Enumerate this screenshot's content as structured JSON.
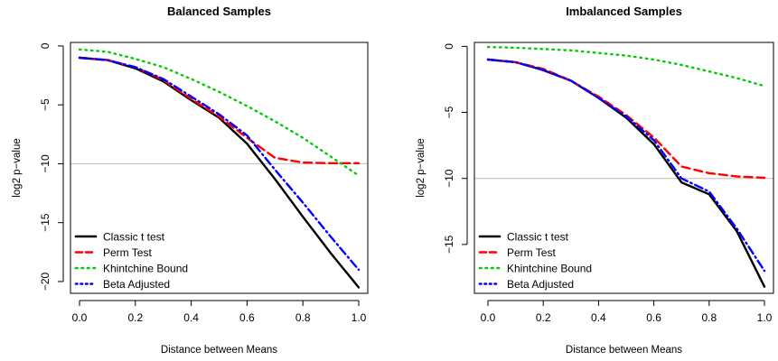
{
  "chart_data": [
    {
      "type": "line",
      "title": "Balanced Samples",
      "xlabel": "Distance between Means",
      "ylabel": "log2 p−value",
      "xlim": [
        0,
        1
      ],
      "ylim": [
        -21,
        0.3
      ],
      "xticks": [
        0.0,
        0.2,
        0.4,
        0.6,
        0.8,
        1.0
      ],
      "xtick_labels": [
        "0.0",
        "0.2",
        "0.4",
        "0.6",
        "0.8",
        "1.0"
      ],
      "yticks": [
        0,
        -5,
        -10,
        -15,
        -20
      ],
      "ytick_labels": [
        "0",
        "−5",
        "−10",
        "−15",
        "−20"
      ],
      "hline": -10,
      "legend_position": "bottom-left",
      "series": [
        {
          "name": "Classic t test",
          "color": "#000000",
          "dash": "solid",
          "x": [
            0,
            0.1,
            0.2,
            0.3,
            0.4,
            0.5,
            0.6,
            0.7,
            0.8,
            0.9,
            1.0
          ],
          "y": [
            -1.0,
            -1.2,
            -1.9,
            -3.0,
            -4.6,
            -6.1,
            -8.3,
            -11.3,
            -14.5,
            -17.6,
            -20.5
          ]
        },
        {
          "name": "Perm Test",
          "color": "#ff0000",
          "dash": "dashed",
          "x": [
            0,
            0.1,
            0.2,
            0.3,
            0.4,
            0.5,
            0.6,
            0.7,
            0.8,
            0.9,
            1.0
          ],
          "y": [
            -1.0,
            -1.2,
            -1.8,
            -2.9,
            -4.5,
            -6.0,
            -7.8,
            -9.5,
            -9.9,
            -9.95,
            -9.95
          ]
        },
        {
          "name": "Khintchine Bound",
          "color": "#00cc00",
          "dash": "dotted",
          "x": [
            0,
            0.1,
            0.2,
            0.3,
            0.4,
            0.5,
            0.6,
            0.7,
            0.8,
            0.9,
            1.0
          ],
          "y": [
            -0.3,
            -0.5,
            -1.1,
            -1.8,
            -2.8,
            -3.9,
            -5.1,
            -6.4,
            -7.8,
            -9.4,
            -11.0
          ]
        },
        {
          "name": "Beta Adjusted",
          "color": "#0000ff",
          "dash": "dotdash",
          "x": [
            0,
            0.1,
            0.2,
            0.3,
            0.4,
            0.5,
            0.6,
            0.7,
            0.8,
            0.9,
            1.0
          ],
          "y": [
            -1.0,
            -1.2,
            -1.8,
            -2.8,
            -4.3,
            -5.8,
            -7.6,
            -10.5,
            -13.3,
            -16.2,
            -19.0
          ]
        }
      ]
    },
    {
      "type": "line",
      "title": "Imbalanced Samples",
      "xlabel": "Distance between Means",
      "ylabel": "log2 p−value",
      "xlim": [
        0,
        1
      ],
      "ylim": [
        -18.7,
        0.3
      ],
      "xticks": [
        0.0,
        0.2,
        0.4,
        0.6,
        0.8,
        1.0
      ],
      "xtick_labels": [
        "0.0",
        "0.2",
        "0.4",
        "0.6",
        "0.8",
        "1.0"
      ],
      "yticks": [
        0,
        -5,
        -10,
        -15
      ],
      "ytick_labels": [
        "0",
        "−5",
        "−10",
        "−15"
      ],
      "hline": -10,
      "legend_position": "bottom-left",
      "series": [
        {
          "name": "Classic t test",
          "color": "#000000",
          "dash": "solid",
          "x": [
            0,
            0.1,
            0.2,
            0.3,
            0.4,
            0.5,
            0.6,
            0.7,
            0.8,
            0.9,
            1.0
          ],
          "y": [
            -1.0,
            -1.2,
            -1.8,
            -2.6,
            -3.9,
            -5.4,
            -7.4,
            -10.3,
            -11.2,
            -14.0,
            -18.2
          ]
        },
        {
          "name": "Perm Test",
          "color": "#ff0000",
          "dash": "dashed",
          "x": [
            0,
            0.1,
            0.2,
            0.3,
            0.4,
            0.5,
            0.6,
            0.7,
            0.8,
            0.9,
            1.0
          ],
          "y": [
            -1.0,
            -1.2,
            -1.7,
            -2.6,
            -3.8,
            -5.2,
            -6.9,
            -9.1,
            -9.6,
            -9.85,
            -9.95
          ]
        },
        {
          "name": "Khintchine Bound",
          "color": "#00cc00",
          "dash": "dotted",
          "x": [
            0,
            0.1,
            0.2,
            0.3,
            0.4,
            0.5,
            0.6,
            0.7,
            0.8,
            0.9,
            1.0
          ],
          "y": [
            -0.05,
            -0.1,
            -0.2,
            -0.3,
            -0.5,
            -0.7,
            -1.0,
            -1.4,
            -1.9,
            -2.4,
            -3.0
          ]
        },
        {
          "name": "Beta Adjusted",
          "color": "#0000ff",
          "dash": "dotdash",
          "x": [
            0,
            0.1,
            0.2,
            0.3,
            0.4,
            0.5,
            0.6,
            0.7,
            0.8,
            0.9,
            1.0
          ],
          "y": [
            -1.0,
            -1.2,
            -1.8,
            -2.6,
            -3.9,
            -5.3,
            -7.1,
            -10.0,
            -11.0,
            -13.8,
            -17.0
          ]
        }
      ]
    }
  ]
}
